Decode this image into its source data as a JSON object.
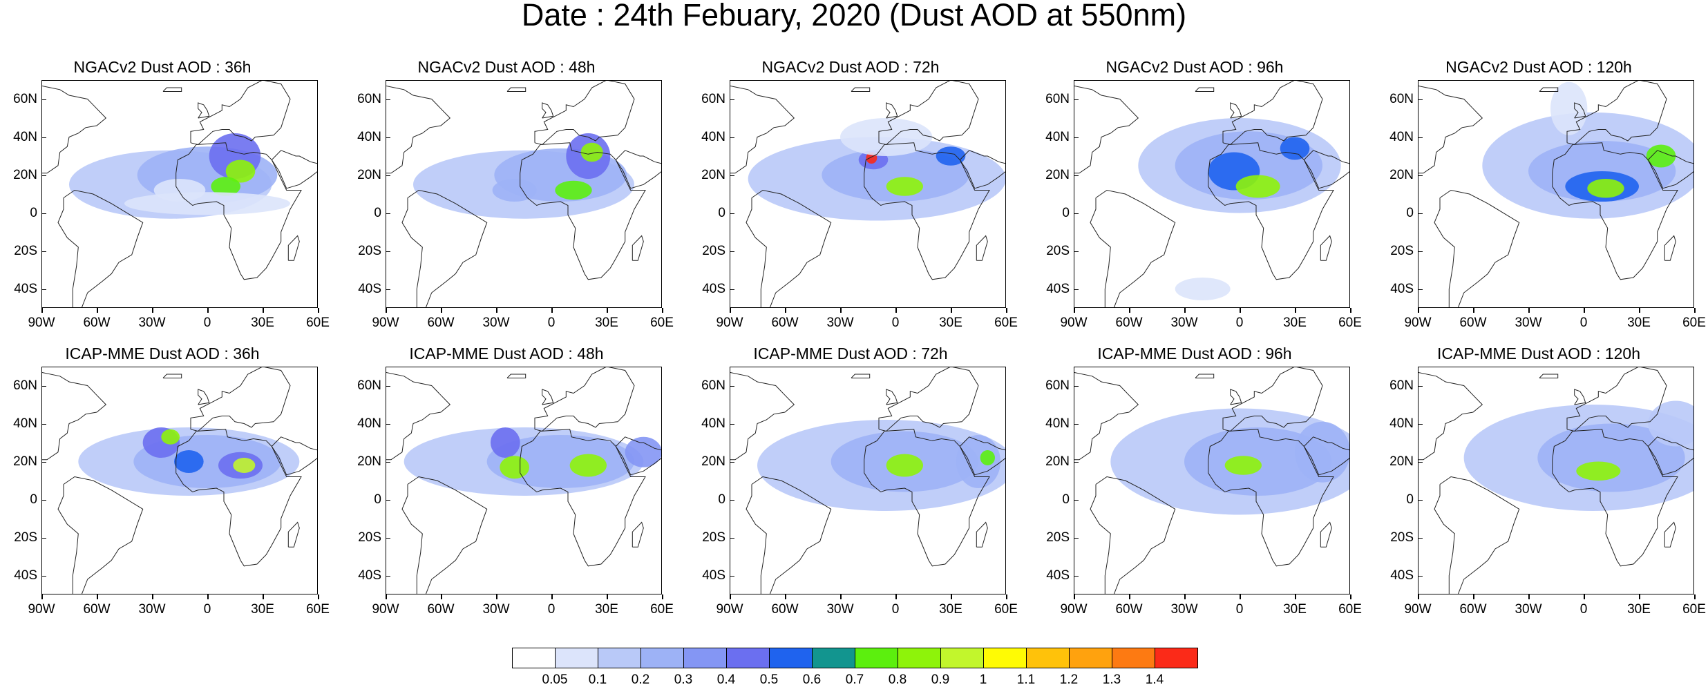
{
  "title": "Date : 24th Febuary, 2020 (Dust AOD at 550nm)",
  "map_axes": {
    "lon_ticks": [
      "90W",
      "60W",
      "30W",
      "0",
      "30E",
      "60E"
    ],
    "lat_ticks": [
      "60N",
      "40N",
      "20N",
      "0",
      "20S",
      "40S"
    ],
    "lon_range": [
      -90,
      60
    ],
    "lat_range": [
      -50,
      70
    ]
  },
  "panels": [
    {
      "title": "NGACv2 Dust AOD : 36h"
    },
    {
      "title": "NGACv2 Dust AOD : 48h"
    },
    {
      "title": "NGACv2 Dust AOD : 72h"
    },
    {
      "title": "NGACv2 Dust AOD : 96h"
    },
    {
      "title": "NGACv2 Dust AOD : 120h"
    },
    {
      "title": "ICAP-MME Dust AOD : 36h"
    },
    {
      "title": "ICAP-MME Dust AOD : 48h"
    },
    {
      "title": "ICAP-MME Dust AOD : 72h"
    },
    {
      "title": "ICAP-MME Dust AOD : 96h"
    },
    {
      "title": "ICAP-MME Dust AOD : 120h"
    }
  ],
  "colorbar": {
    "labels": [
      "0.05",
      "0.1",
      "0.2",
      "0.3",
      "0.4",
      "0.5",
      "0.6",
      "0.7",
      "0.8",
      "0.9",
      "1",
      "1.1",
      "1.2",
      "1.3",
      "1.4"
    ],
    "colors": [
      "#ffffff",
      "#dce4fb",
      "#b9c9f8",
      "#9db2f6",
      "#8496f4",
      "#6b6ff0",
      "#1f63ee",
      "#12958f",
      "#5cef0e",
      "#8ef30a",
      "#c2f62c",
      "#fffb04",
      "#ffc20a",
      "#ffa20e",
      "#fd7a12",
      "#fb2a18"
    ]
  }
}
